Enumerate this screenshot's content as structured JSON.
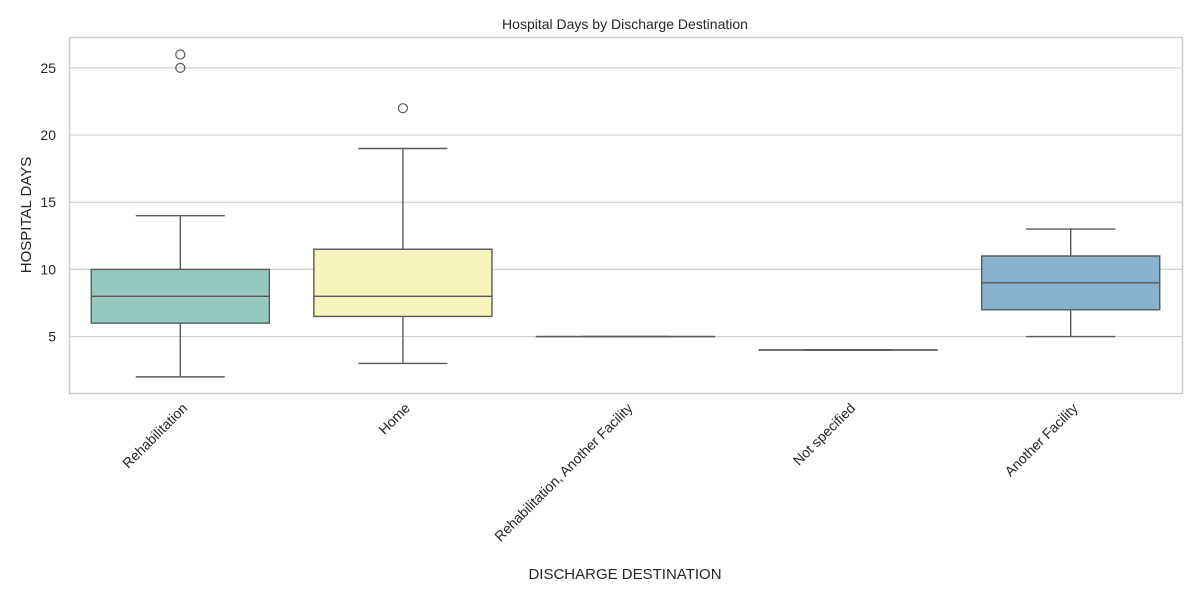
{
  "chart_data": {
    "type": "box",
    "title": "Hospital Days by Discharge Destination",
    "xlabel": "DISCHARGE DESTINATION",
    "ylabel": "HOSPITAL DAYS",
    "ylim": [
      0.8,
      27.3
    ],
    "yticks": [
      5,
      10,
      15,
      20,
      25
    ],
    "grid": true,
    "categories": [
      "Rehabilitation",
      "Home",
      "Rehabilitation, Another Facility",
      "Not specified",
      "Another Facility"
    ],
    "boxes": [
      {
        "category": "Rehabilitation",
        "whisker_low": 2,
        "q1": 6,
        "median": 8,
        "q3": 10,
        "whisker_high": 14,
        "outliers": [
          25,
          26
        ],
        "color": "#96cac1"
      },
      {
        "category": "Home",
        "whisker_low": 3,
        "q1": 6.5,
        "median": 8,
        "q3": 11.5,
        "whisker_high": 19,
        "outliers": [
          22
        ],
        "color": "#f6f6bc"
      },
      {
        "category": "Rehabilitation, Another Facility",
        "whisker_low": 5,
        "q1": 5,
        "median": 5,
        "q3": 5,
        "whisker_high": 5,
        "outliers": [],
        "color": "#bebada"
      },
      {
        "category": "Not specified",
        "whisker_low": 4,
        "q1": 4,
        "median": 4,
        "q3": 4,
        "whisker_high": 4,
        "outliers": [],
        "color": "#ef8a7c"
      },
      {
        "category": "Another Facility",
        "whisker_low": 5,
        "q1": 7,
        "median": 9,
        "q3": 11,
        "whisker_high": 13,
        "outliers": [],
        "color": "#88b1cf"
      }
    ]
  }
}
